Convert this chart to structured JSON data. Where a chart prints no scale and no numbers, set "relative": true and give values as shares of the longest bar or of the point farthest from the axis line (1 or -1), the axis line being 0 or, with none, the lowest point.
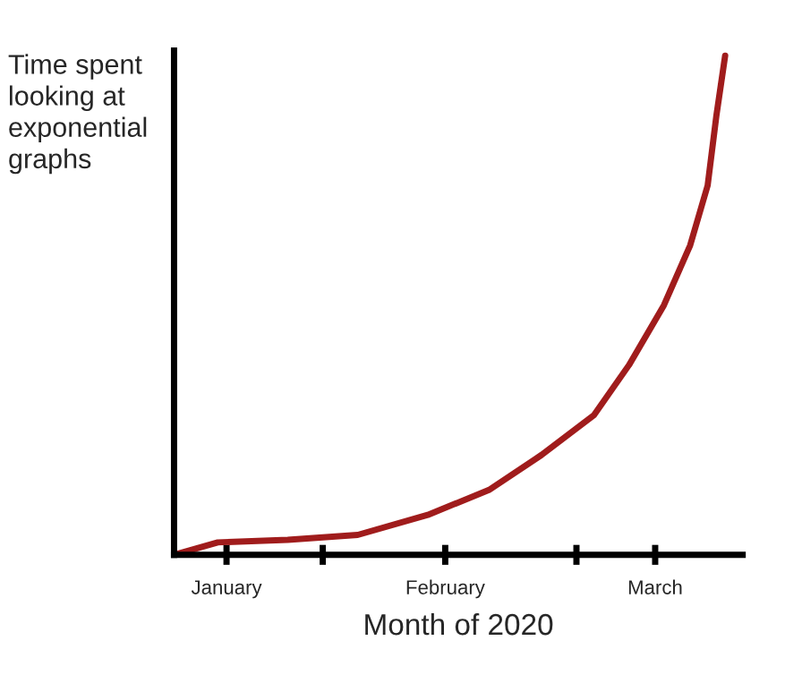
{
  "chart_data": {
    "type": "line",
    "relative": true,
    "xlabel": "Month of 2020",
    "ylabel": "Time spent\nlooking at\nexponential\ngraphs",
    "x": [
      "2020-01-15",
      "2020-01-20",
      "2020-01-28",
      "2020-02-05",
      "2020-02-13",
      "2020-02-20",
      "2020-02-26",
      "2020-03-03",
      "2020-03-07",
      "2020-03-11",
      "2020-03-14",
      "2020-03-16",
      "2020-03-17",
      "2020-03-18"
    ],
    "series": [
      {
        "color": "#a01c1c",
        "values": [
          0,
          0.025,
          0.03,
          0.04,
          0.08,
          0.13,
          0.2,
          0.28,
          0.38,
          0.5,
          0.62,
          0.74,
          0.88,
          1.0
        ]
      }
    ],
    "xlim": [
      "2020-01-15",
      "2020-03-20"
    ],
    "xticks": [
      {
        "value": "2020-01-21",
        "label": "January"
      },
      {
        "value": "2020-02-01",
        "label": null
      },
      {
        "value": "2020-02-15",
        "label": "February"
      },
      {
        "value": "2020-03-01",
        "label": null
      },
      {
        "value": "2020-03-10",
        "label": "March"
      }
    ],
    "grid": false,
    "legend": false,
    "marker": "none",
    "line_style": "solid"
  }
}
